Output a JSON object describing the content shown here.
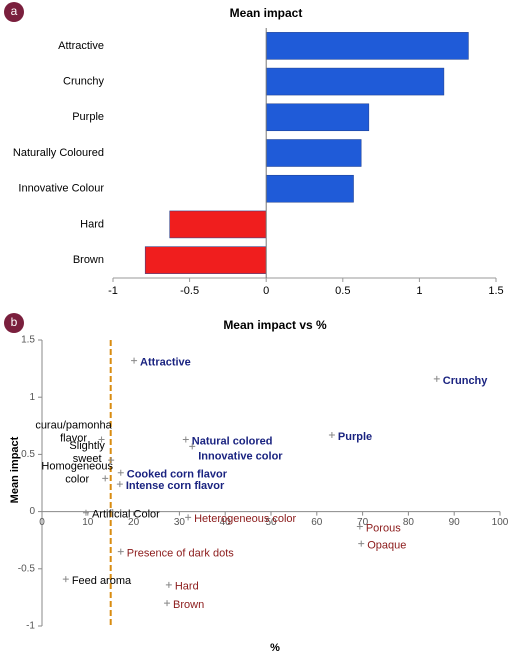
{
  "chart_data": [
    {
      "type": "hbar",
      "panel_label": "a",
      "title": "Mean impact",
      "categories": [
        "Attractive",
        "Crunchy",
        "Purple",
        "Naturally Coloured",
        "Innovative Colour",
        "Hard",
        "Brown"
      ],
      "values": [
        1.32,
        1.16,
        0.67,
        0.62,
        0.57,
        -0.63,
        -0.79
      ],
      "colors": [
        "#1f5bd8",
        "#1f5bd8",
        "#1f5bd8",
        "#1f5bd8",
        "#1f5bd8",
        "#f01e1e",
        "#f01e1e"
      ],
      "xlim": [
        -1,
        1.5
      ],
      "xticks": [
        -1,
        -0.5,
        0,
        0.5,
        1,
        1.5
      ]
    },
    {
      "type": "scatter",
      "panel_label": "b",
      "title": "Mean impact vs %",
      "x_label": "%",
      "y_label": "Mean impact",
      "labels": [
        "Attractive",
        "Crunchy",
        "Purple",
        "Natural colored",
        "Innovative color",
        "Cooked corn flavor",
        "Intense corn flavor",
        [
          "curau/pamonha",
          "flavor"
        ],
        [
          "Slightly",
          "sweet"
        ],
        [
          "Homogeneous",
          "color"
        ],
        "Artificial Color",
        "Heterogeneous color",
        "Porous",
        "Opaque",
        "Presence of dark dots",
        "Feed aroma",
        "Hard",
        "Brown"
      ],
      "x": [
        20.1,
        86.2,
        63.3,
        31.4,
        32.8,
        17.2,
        17,
        13,
        15.1,
        13.8,
        9.6,
        31.9,
        69.4,
        69.7,
        17.2,
        5.2,
        27.7,
        27.3
      ],
      "values": [
        1.32,
        1.16,
        0.67,
        0.63,
        0.57,
        0.34,
        0.24,
        0.63,
        0.45,
        0.29,
        -0.01,
        -0.05,
        -0.13,
        -0.28,
        -0.35,
        -0.59,
        -0.64,
        -0.8
      ],
      "colors": [
        "#1a2380",
        "#1a2380",
        "#1a2380",
        "#1a2380",
        "#1a2380",
        "#1a2380",
        "#1a2380",
        "#000000",
        "#000000",
        "#000000",
        "#000000",
        "#8b1a1a",
        "#8b1a1a",
        "#8b1a1a",
        "#8b1a1a",
        "#000000",
        "#8b1a1a",
        "#8b1a1a"
      ],
      "label_bold": [
        true,
        true,
        true,
        true,
        true,
        true,
        true,
        false,
        false,
        false,
        false,
        false,
        false,
        false,
        false,
        false,
        false,
        false
      ],
      "xlim": [
        0,
        100
      ],
      "xticks": [
        0,
        10,
        20,
        30,
        40,
        50,
        60,
        70,
        80,
        90,
        100
      ],
      "ylim": [
        -1,
        1.5
      ],
      "yticks": [
        -1,
        -0.5,
        0,
        0.5,
        1,
        1.5
      ],
      "reference_line": {
        "x": 15,
        "color": "#d98c10"
      }
    }
  ]
}
